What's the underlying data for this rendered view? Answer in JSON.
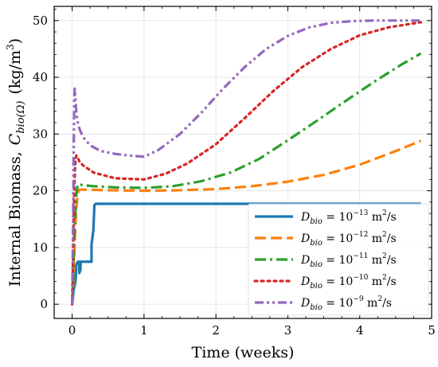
{
  "chart_data": {
    "type": "line",
    "xlabel": "Time (weeks)",
    "ylabel": {
      "main": "Internal Biomass,",
      "symbol": "C",
      "symbol_sub": "bio(Ω)",
      "unit_open": "(kg/m",
      "unit_sup": "3",
      "unit_close": ")"
    },
    "xlim": [
      -0.25,
      5.0
    ],
    "ylim": [
      -2.5,
      52.5
    ],
    "xticks": [
      0,
      1,
      2,
      3,
      4,
      5
    ],
    "yticks": [
      0,
      10,
      20,
      30,
      40,
      50
    ],
    "xtick_labels": [
      "0",
      "1",
      "2",
      "3",
      "4",
      "5"
    ],
    "ytick_labels": [
      "0",
      "10",
      "20",
      "30",
      "40",
      "50"
    ],
    "grid": true,
    "legend_position": "lower-right",
    "series": [
      {
        "name": "D_bio = 10^-13 m^2/s",
        "legend": {
          "sym": "D",
          "sub": "bio",
          "eq": " = 10",
          "exp": "−13",
          "unit": " m",
          "unit_sup": "2",
          "tail": "/s"
        },
        "color": "#1f77b4",
        "style": "solid",
        "x": [
          0,
          0.01,
          0.02,
          0.03,
          0.04,
          0.05,
          0.055,
          0.06,
          0.08,
          0.1,
          0.1,
          0.115,
          0.12,
          0.2,
          0.25,
          0.27,
          0.27,
          0.29,
          0.295,
          0.3,
          0.31,
          0.33,
          1.0,
          2.0,
          3.0,
          4.0,
          4.85
        ],
        "y": [
          0,
          1.0,
          2.5,
          3.0,
          3.5,
          4.5,
          6.0,
          7.0,
          7.5,
          7.5,
          5.5,
          6.0,
          7.5,
          7.5,
          7.5,
          7.5,
          10.5,
          12.5,
          13.0,
          14.5,
          17.5,
          17.7,
          17.7,
          17.7,
          17.7,
          17.7,
          17.7
        ]
      },
      {
        "name": "D_bio = 10^-12 m^2/s",
        "legend": {
          "sym": "D",
          "sub": "bio",
          "eq": " = 10",
          "exp": "−12",
          "unit": " m",
          "unit_sup": "2",
          "tail": "/s"
        },
        "color": "#ff7f0e",
        "style": "dashed",
        "x": [
          0,
          0.01,
          0.02,
          0.03,
          0.04,
          0.05,
          0.06,
          0.07,
          0.08,
          0.09,
          0.1,
          0.15,
          0.5,
          1.0,
          1.5,
          2.0,
          2.5,
          3.0,
          3.5,
          4.0,
          4.5,
          4.85
        ],
        "y": [
          0,
          2.0,
          5.0,
          9.0,
          12.5,
          15.0,
          17.0,
          18.5,
          19.5,
          20.0,
          20.2,
          20.2,
          20.1,
          20.0,
          20.1,
          20.3,
          20.8,
          21.6,
          22.8,
          24.6,
          27.0,
          28.8
        ]
      },
      {
        "name": "D_bio = 10^-11 m^2/s",
        "legend": {
          "sym": "D",
          "sub": "bio",
          "eq": " = 10",
          "exp": "−11",
          "unit": " m",
          "unit_sup": "2",
          "tail": "/s"
        },
        "color": "#2ca02c",
        "style": "dashdot",
        "x": [
          0,
          0.01,
          0.02,
          0.03,
          0.04,
          0.05,
          0.06,
          0.07,
          0.08,
          0.09,
          0.1,
          0.15,
          0.3,
          0.6,
          1.0,
          1.4,
          1.8,
          2.2,
          2.6,
          3.0,
          3.4,
          3.8,
          4.2,
          4.6,
          4.85
        ],
        "y": [
          0,
          3.0,
          7.0,
          11.0,
          14.5,
          17.5,
          19.5,
          20.5,
          21.0,
          21.2,
          21.1,
          21.0,
          20.8,
          20.6,
          20.5,
          20.8,
          21.7,
          23.2,
          25.6,
          28.9,
          32.3,
          35.8,
          39.2,
          42.4,
          44.2
        ]
      },
      {
        "name": "D_bio = 10^-10 m^2/s",
        "legend": {
          "sym": "D",
          "sub": "bio",
          "eq": " = 10",
          "exp": "−10",
          "unit": " m",
          "unit_sup": "2",
          "tail": "/s"
        },
        "color": "#d62728",
        "style": "dotted",
        "x": [
          0,
          0.01,
          0.02,
          0.03,
          0.04,
          0.05,
          0.06,
          0.08,
          0.1,
          0.15,
          0.3,
          0.6,
          1.0,
          1.3,
          1.6,
          2.0,
          2.4,
          2.8,
          3.2,
          3.6,
          4.0,
          4.4,
          4.85
        ],
        "y": [
          0,
          6.0,
          13.0,
          20.0,
          24.0,
          25.8,
          26.2,
          25.8,
          25.2,
          24.5,
          23.2,
          22.2,
          22.0,
          23.0,
          24.8,
          28.2,
          32.8,
          37.6,
          41.8,
          45.0,
          47.4,
          48.8,
          49.7
        ]
      },
      {
        "name": "D_bio = 10^-9 m^2/s",
        "legend": {
          "sym": "D",
          "sub": "bio",
          "eq": " = 10",
          "exp": "−9",
          "unit": " m",
          "unit_sup": "2",
          "tail": "/s"
        },
        "color": "#9467bd",
        "style": "dashdotdot",
        "x": [
          0,
          0.01,
          0.02,
          0.025,
          0.03,
          0.035,
          0.04,
          0.05,
          0.06,
          0.08,
          0.1,
          0.15,
          0.25,
          0.4,
          0.6,
          0.8,
          1.0,
          1.2,
          1.5,
          1.8,
          2.1,
          2.4,
          2.7,
          3.0,
          3.3,
          3.6,
          3.9,
          4.2,
          4.5,
          4.85
        ],
        "y": [
          0,
          10.0,
          22.0,
          30.0,
          36.0,
          38.0,
          37.5,
          35.5,
          33.5,
          32.0,
          31.0,
          29.5,
          28.0,
          27.0,
          26.5,
          26.2,
          26.0,
          27.2,
          30.0,
          33.8,
          38.0,
          41.8,
          45.0,
          47.3,
          48.8,
          49.6,
          49.9,
          50.0,
          50.0,
          50.0
        ]
      }
    ]
  }
}
